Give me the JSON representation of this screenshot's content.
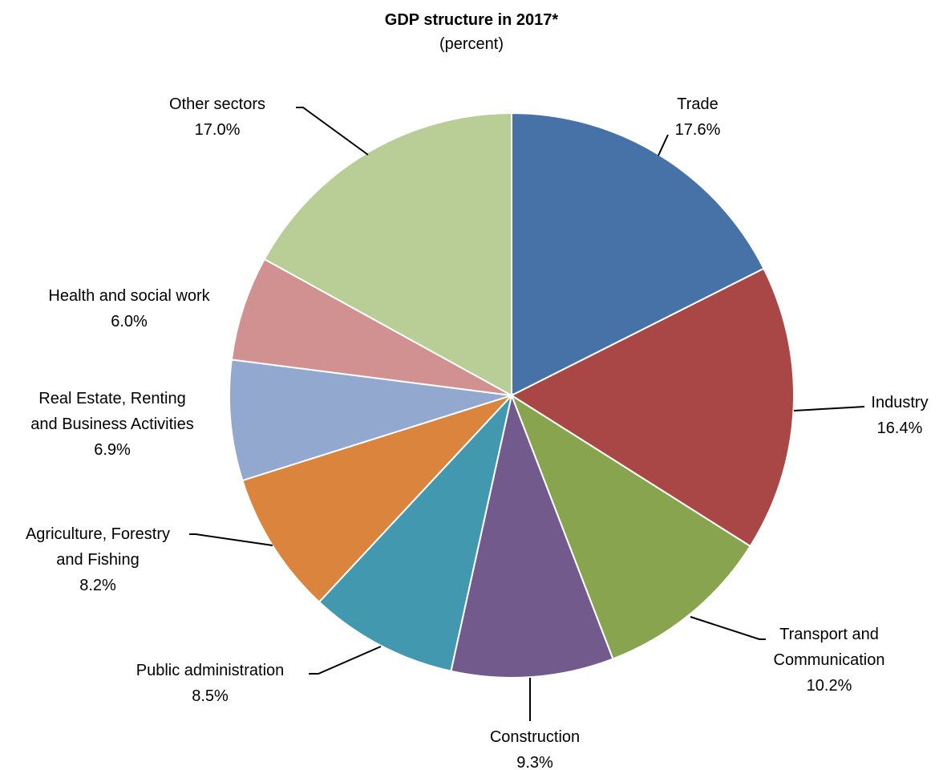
{
  "chart_data": {
    "type": "pie",
    "title": "GDP structure in 2017*",
    "subtitle": "(percent)",
    "slices": [
      {
        "label_lines": [
          "Trade"
        ],
        "value": 17.6,
        "value_label": "17.6%",
        "color": "#4672A8"
      },
      {
        "label_lines": [
          "Industry"
        ],
        "value": 16.4,
        "value_label": "16.4%",
        "color": "#A94746"
      },
      {
        "label_lines": [
          "Transport and",
          "Communication"
        ],
        "value": 10.2,
        "value_label": "10.2%",
        "color": "#89A44E"
      },
      {
        "label_lines": [
          "Construction"
        ],
        "value": 9.3,
        "value_label": "9.3%",
        "color": "#725A8C"
      },
      {
        "label_lines": [
          "Public administration"
        ],
        "value": 8.5,
        "value_label": "8.5%",
        "color": "#4298AF"
      },
      {
        "label_lines": [
          "Agriculture, Forestry",
          "and Fishing"
        ],
        "value": 8.2,
        "value_label": "8.2%",
        "color": "#DA843D"
      },
      {
        "label_lines": [
          "Real Estate, Renting",
          "and Business Activities"
        ],
        "value": 6.9,
        "value_label": "6.9%",
        "color": "#93A8CF"
      },
      {
        "label_lines": [
          "Health and social work"
        ],
        "value": 6.0,
        "value_label": "6.0%",
        "color": "#D09190"
      },
      {
        "label_lines": [
          "Other sectors"
        ],
        "value": 17.0,
        "value_label": "17.0%",
        "color": "#B9CD96"
      }
    ]
  }
}
